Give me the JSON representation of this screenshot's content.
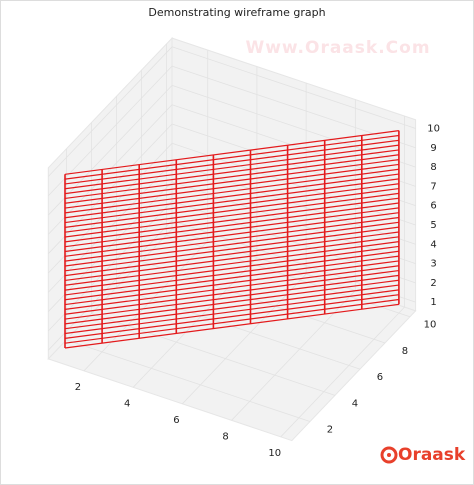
{
  "chart_data": {
    "type": "wireframe",
    "title": "Demonstrating wireframe graph",
    "watermark": "Www.Oraask.Com",
    "logo": "Oraask",
    "x": [
      1,
      2,
      3,
      4,
      5,
      6,
      7,
      8,
      9,
      10
    ],
    "z": [
      1,
      1.25,
      1.5,
      1.75,
      2,
      2.25,
      2.5,
      2.75,
      3,
      3.25,
      3.5,
      3.75,
      4,
      4.25,
      4.5,
      4.75,
      5,
      5.25,
      5.5,
      5.75,
      6,
      6.25,
      6.5,
      6.75,
      7,
      7.25,
      7.5,
      7.75,
      8,
      8.25,
      8.5,
      8.75,
      9,
      9.25,
      9.5,
      9.75,
      10
    ],
    "color": "#e31a1c",
    "xlim": [
      0.55,
      10.45
    ],
    "ylim": [
      0.55,
      10.45
    ],
    "zlim": [
      0.55,
      10.45
    ],
    "xticks": [
      2,
      4,
      6,
      8,
      10
    ],
    "yticks": [
      2,
      4,
      6,
      8,
      10
    ],
    "zticks": [
      1,
      2,
      3,
      4,
      5,
      6,
      7,
      8,
      9,
      10
    ],
    "grid": true
  }
}
